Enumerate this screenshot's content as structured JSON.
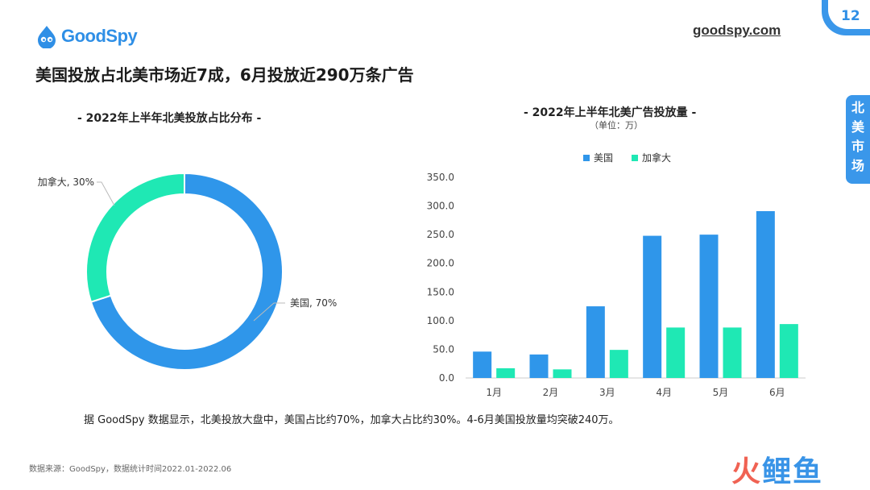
{
  "brand": {
    "name": "GoodSpy",
    "url": "goodspy.com"
  },
  "page_number": "12",
  "headline": "美国投放占北美市场近7成，6月投放近290万条广告",
  "side_tag": [
    "北",
    "美",
    "市",
    "场"
  ],
  "summary": "据 GoodSpy 数据显示，北美投放大盘中，美国占比约70%，加拿大占比约30%。4-6月美国投放量均突破240万。",
  "source": "数据来源：GoodSpy，数据统计时间2022.01-2022.06",
  "watermark": {
    "part1": "火",
    "part2": "鲤鱼"
  },
  "colors": {
    "us": "#2f96ea",
    "ca": "#1fe8b4",
    "accent": "#3a97ea"
  },
  "chart_data": [
    {
      "type": "pie",
      "title": "- 2022年上半年北美投放占比分布 -",
      "slices": [
        {
          "label": "美国",
          "value": 70,
          "display": "美国, 70%"
        },
        {
          "label": "加拿大",
          "value": 30,
          "display": "加拿大, 30%"
        }
      ]
    },
    {
      "type": "bar",
      "title": "- 2022年上半年北美广告投放量 -",
      "subtitle": "（单位：万）",
      "categories": [
        "1月",
        "2月",
        "3月",
        "4月",
        "5月",
        "6月"
      ],
      "series": [
        {
          "name": "美国",
          "values": [
            46,
            41,
            125,
            248,
            250,
            291
          ]
        },
        {
          "name": "加拿大",
          "values": [
            17,
            15,
            49,
            88,
            88,
            94
          ]
        }
      ],
      "ylim": [
        0,
        350
      ],
      "yticks": [
        "0.0",
        "50.0",
        "100.0",
        "150.0",
        "200.0",
        "250.0",
        "300.0",
        "350.0"
      ],
      "legend": "top"
    }
  ]
}
